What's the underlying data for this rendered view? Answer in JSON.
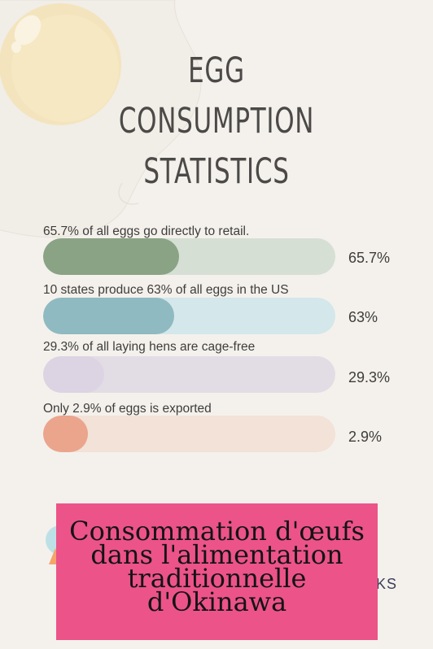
{
  "title_lines": [
    "EGG",
    "CONSUMPTION",
    "STATISTICS"
  ],
  "chart_data": {
    "type": "bar",
    "orientation": "horizontal",
    "title": "EGG CONSUMPTION STATISTICS",
    "xlim": [
      0,
      100
    ],
    "categories": [
      "65.7% of all eggs go directly to retail.",
      "10 states produce 63% of all eggs in the US",
      "29.3% of all laying hens are cage-free",
      "Only 2.9% of eggs is exported"
    ],
    "values": [
      65.7,
      63,
      29.3,
      2.9
    ],
    "value_labels": [
      "65.7%",
      "63%",
      "29.3%",
      "2.9%"
    ],
    "colors": {
      "fills": [
        "#8aa385",
        "#8fbac1",
        "#dcd3e3",
        "#eba58d"
      ],
      "tracks": [
        "#d6dfd4",
        "#d4e7ea",
        "#e2dde5",
        "#f2e2d8"
      ]
    }
  },
  "banner": {
    "text": "Consommation d'œufs dans l'alimentation traditionnelle d'Okinawa",
    "color": "#ec5389"
  },
  "logo": {
    "partial_text": "KS"
  }
}
